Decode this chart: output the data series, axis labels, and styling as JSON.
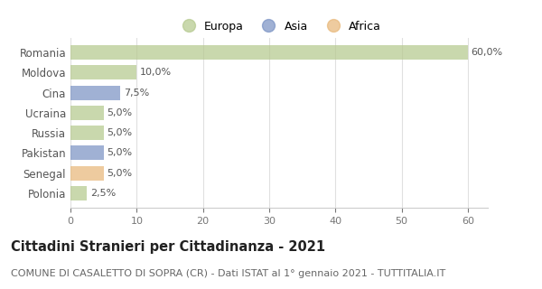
{
  "categories": [
    "Romania",
    "Moldova",
    "Cina",
    "Ucraina",
    "Russia",
    "Pakistan",
    "Senegal",
    "Polonia"
  ],
  "values": [
    60.0,
    10.0,
    7.5,
    5.0,
    5.0,
    5.0,
    5.0,
    2.5
  ],
  "colors": [
    "#b5c98e",
    "#b5c98e",
    "#7b93c4",
    "#b5c98e",
    "#b5c98e",
    "#7b93c4",
    "#e8b87a",
    "#b5c98e"
  ],
  "labels": [
    "60,0%",
    "10,0%",
    "7,5%",
    "5,0%",
    "5,0%",
    "5,0%",
    "5,0%",
    "2,5%"
  ],
  "legend": [
    {
      "label": "Europa",
      "color": "#b5c98e"
    },
    {
      "label": "Asia",
      "color": "#7b93c4"
    },
    {
      "label": "Africa",
      "color": "#e8b87a"
    }
  ],
  "xlim": [
    0,
    63
  ],
  "xticks": [
    0,
    10,
    20,
    30,
    40,
    50,
    60
  ],
  "title": "Cittadini Stranieri per Cittadinanza - 2021",
  "subtitle": "COMUNE DI CASALETTO DI SOPRA (CR) - Dati ISTAT al 1° gennaio 2021 - TUTTITALIA.IT",
  "title_fontsize": 10.5,
  "subtitle_fontsize": 8,
  "background_color": "#ffffff",
  "bar_alpha": 0.72
}
